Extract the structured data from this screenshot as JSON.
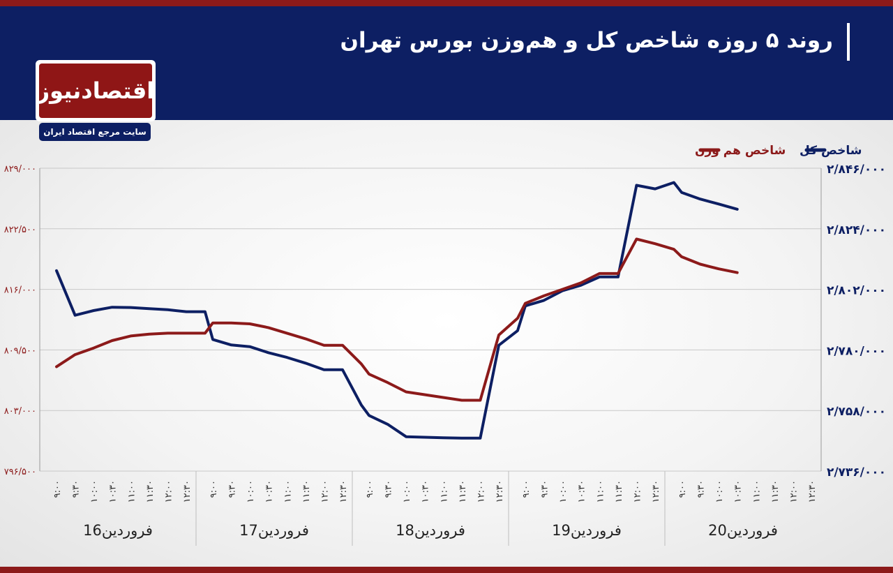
{
  "header": {
    "title": "روند ۵ روزه شاخص کل و هم‌وزن بورس تهران"
  },
  "logo": {
    "name": "اقتصادنیوز",
    "tagline": "سایت مرجع اقتصاد ایران"
  },
  "colors": {
    "background_header": "#0d1f63",
    "accent": "#8c1a1a",
    "total_index": "#0d1f63",
    "equal_weight_index": "#8c1a1a"
  },
  "chart_data": {
    "type": "line",
    "legend_placement": "top-right",
    "grid": true,
    "time_ticks": [
      "۹:۰۰",
      "۹:۳۰",
      "۱۰:۰۰",
      "۱۰:۳۰",
      "۱۱:۰۰",
      "۱۱:۳۰",
      "۱۲:۰۰",
      "۱۲:۳۰"
    ],
    "days": [
      "16فروردین",
      "17فروردین",
      "18فروردین",
      "19فروردین",
      "20فروردین"
    ],
    "y_left": {
      "ticks": [
        "۸۲۹/۰۰۰",
        "۸۲۲/۵۰۰",
        "۸۱۶/۰۰۰",
        "۸۰۹/۵۰۰",
        "۸۰۳/۰۰۰",
        "۷۹۶/۵۰۰"
      ],
      "range": [
        796500,
        829000
      ]
    },
    "y_right": {
      "ticks": [
        "۲/۸۴۶/۰۰۰",
        "۲/۸۲۴/۰۰۰",
        "۲/۸۰۲/۰۰۰",
        "۲/۷۸۰/۰۰۰",
        "۲/۷۵۸/۰۰۰",
        "۲/۷۳۶/۰۰۰"
      ],
      "range": [
        2736000,
        2846000
      ]
    },
    "series": [
      {
        "name": "شاخص کل",
        "axis": "right",
        "values": [
          2808800,
          2792600,
          2794300,
          2795500,
          2795400,
          2795000,
          2794600,
          2793900,
          2793900,
          2783800,
          2781800,
          2781200,
          2779000,
          2777300,
          2775200,
          2772800,
          2772800,
          2760000,
          2756200,
          2753000,
          2748500,
          2748300,
          2748100,
          2748000,
          2748000,
          2781700,
          2787000,
          2796000,
          2798000,
          2801500,
          2803500,
          2806500,
          2806500,
          2839800,
          2838500,
          2840800,
          2837200,
          2834800,
          2833000,
          2831100
        ]
      },
      {
        "name": "شاخص هم وزن",
        "axis": "left",
        "values": [
          807700,
          809000,
          809700,
          810500,
          811000,
          811200,
          811300,
          811300,
          811300,
          812400,
          812400,
          812300,
          811900,
          811300,
          810700,
          810000,
          810000,
          808000,
          806900,
          806000,
          805000,
          804700,
          804400,
          804100,
          804100,
          811100,
          812900,
          814500,
          815300,
          816000,
          816700,
          817700,
          817700,
          821400,
          820900,
          820300,
          819500,
          818700,
          818200,
          817800
        ]
      }
    ]
  }
}
